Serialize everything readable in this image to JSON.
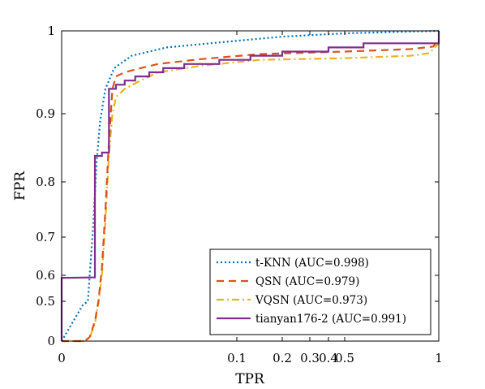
{
  "chart_data": {
    "type": "line",
    "title": "",
    "xlabel": "TPR",
    "ylabel": "FPR",
    "x_tick_labels": [
      "0",
      "0.1",
      "0.2",
      "0.3",
      "0.4",
      "0.5",
      "1"
    ],
    "y_tick_labels": [
      "0",
      "0.5",
      "0.6",
      "0.7",
      "0.8",
      "0.9",
      "1"
    ],
    "grid": false,
    "legend_position": "bottom-right",
    "series": [
      {
        "name": "t-KNN (AUC=0.998)",
        "color": "#0072BD",
        "style": "dotted",
        "points": [
          [
            0,
            0
          ],
          [
            0.004,
            0.15
          ],
          [
            0.008,
            0.3
          ],
          [
            0.012,
            0.45
          ],
          [
            0.015,
            0.5
          ],
          [
            0.016,
            0.6
          ],
          [
            0.018,
            0.72
          ],
          [
            0.02,
            0.83
          ],
          [
            0.022,
            0.89
          ],
          [
            0.025,
            0.93
          ],
          [
            0.03,
            0.955
          ],
          [
            0.04,
            0.97
          ],
          [
            0.06,
            0.98
          ],
          [
            0.1,
            0.988
          ],
          [
            0.2,
            0.993
          ],
          [
            0.5,
            0.997
          ],
          [
            1.0,
            1.0
          ]
        ]
      },
      {
        "name": "QSN (AUC=0.979)",
        "color": "#D95319",
        "style": "dashed",
        "points": [
          [
            0,
            0
          ],
          [
            0.013,
            0
          ],
          [
            0.016,
            0.05
          ],
          [
            0.019,
            0.25
          ],
          [
            0.021,
            0.5
          ],
          [
            0.023,
            0.62
          ],
          [
            0.025,
            0.75
          ],
          [
            0.027,
            0.86
          ],
          [
            0.029,
            0.93
          ],
          [
            0.031,
            0.945
          ],
          [
            0.036,
            0.95
          ],
          [
            0.045,
            0.955
          ],
          [
            0.055,
            0.96
          ],
          [
            0.08,
            0.966
          ],
          [
            0.15,
            0.972
          ],
          [
            0.5,
            0.975
          ],
          [
            0.85,
            0.978
          ],
          [
            0.97,
            0.981
          ],
          [
            1.0,
            0.99
          ]
        ]
      },
      {
        "name": "VQSN (AUC=0.973)",
        "color": "#EDB120",
        "style": "dashdot",
        "points": [
          [
            0,
            0
          ],
          [
            0.013,
            0
          ],
          [
            0.016,
            0.04
          ],
          [
            0.019,
            0.22
          ],
          [
            0.021,
            0.48
          ],
          [
            0.023,
            0.6
          ],
          [
            0.025,
            0.73
          ],
          [
            0.027,
            0.84
          ],
          [
            0.029,
            0.9
          ],
          [
            0.031,
            0.92
          ],
          [
            0.036,
            0.93
          ],
          [
            0.045,
            0.94
          ],
          [
            0.055,
            0.95
          ],
          [
            0.08,
            0.958
          ],
          [
            0.15,
            0.965
          ],
          [
            0.5,
            0.967
          ],
          [
            0.85,
            0.97
          ],
          [
            0.95,
            0.973
          ],
          [
            1.0,
            0.985
          ]
        ]
      },
      {
        "name": "tianyan176-2 (AUC=0.991)",
        "color": "#7E2F8E",
        "style": "solid",
        "points": [
          [
            0,
            0
          ],
          [
            0,
            0.59
          ],
          [
            0.019,
            0.592
          ],
          [
            0.019,
            0.838
          ],
          [
            0.023,
            0.838
          ],
          [
            0.023,
            0.843
          ],
          [
            0.027,
            0.843
          ],
          [
            0.027,
            0.93
          ],
          [
            0.031,
            0.93
          ],
          [
            0.031,
            0.935
          ],
          [
            0.036,
            0.935
          ],
          [
            0.036,
            0.94
          ],
          [
            0.042,
            0.94
          ],
          [
            0.042,
            0.945
          ],
          [
            0.05,
            0.945
          ],
          [
            0.05,
            0.95
          ],
          [
            0.058,
            0.95
          ],
          [
            0.058,
            0.955
          ],
          [
            0.07,
            0.955
          ],
          [
            0.07,
            0.96
          ],
          [
            0.09,
            0.96
          ],
          [
            0.09,
            0.965
          ],
          [
            0.13,
            0.965
          ],
          [
            0.13,
            0.97
          ],
          [
            0.2,
            0.97
          ],
          [
            0.2,
            0.975
          ],
          [
            0.4,
            0.975
          ],
          [
            0.4,
            0.98
          ],
          [
            0.6,
            0.98
          ],
          [
            0.6,
            0.985
          ],
          [
            1.0,
            0.985
          ],
          [
            1.0,
            1.0
          ]
        ]
      }
    ]
  }
}
